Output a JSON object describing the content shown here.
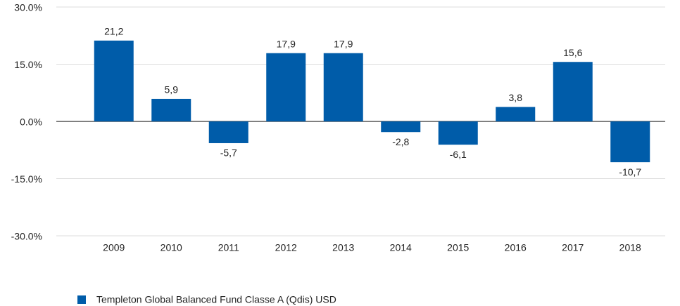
{
  "chart_data": {
    "type": "bar",
    "categories": [
      "2009",
      "2010",
      "2011",
      "2012",
      "2013",
      "2014",
      "2015",
      "2016",
      "2017",
      "2018"
    ],
    "series": [
      {
        "name": "Templeton Global Balanced Fund Classe A (Qdis) USD",
        "color": "#005ca9",
        "values": [
          21.2,
          5.9,
          -5.7,
          17.9,
          17.9,
          -2.8,
          -6.1,
          3.8,
          15.6,
          -10.7
        ],
        "value_labels": [
          "21,2",
          "5,9",
          "-5,7",
          "17,9",
          "17,9",
          "-2,8",
          "-6,1",
          "3,8",
          "15,6",
          "-10,7"
        ]
      }
    ],
    "ylim": [
      -30,
      30
    ],
    "yticks": [
      {
        "value": 30,
        "label": "30.0%"
      },
      {
        "value": 15,
        "label": "15.0%"
      },
      {
        "value": 0,
        "label": "0.0%"
      },
      {
        "value": -15,
        "label": "-15.0%"
      },
      {
        "value": -30,
        "label": "-30.0%"
      }
    ],
    "grid": true,
    "legend": "bottom-left"
  }
}
